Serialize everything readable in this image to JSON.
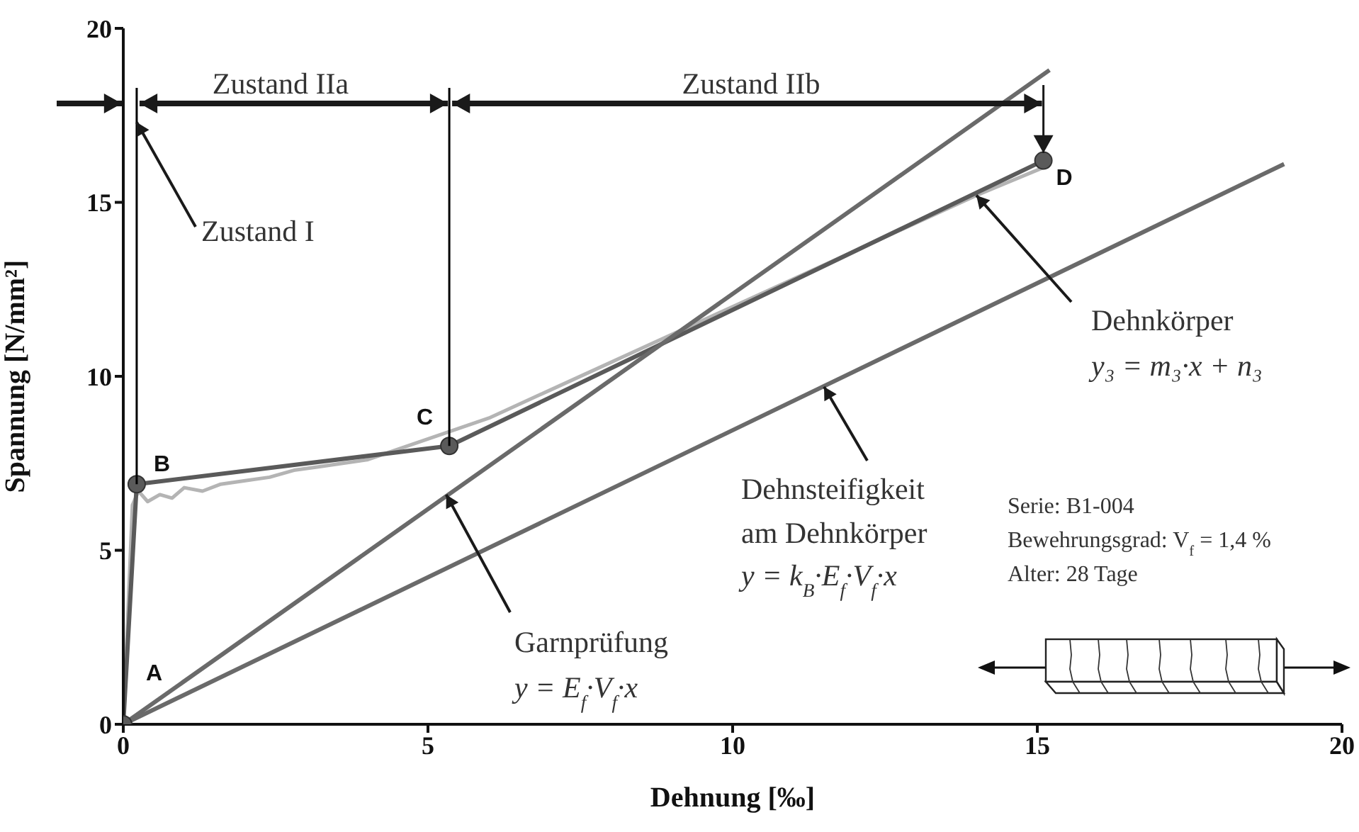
{
  "chart_data": {
    "type": "line",
    "xlabel": "Dehnung [‰]",
    "ylabel": "Spannung [N/mm²]",
    "xlim": [
      0,
      20
    ],
    "ylim": [
      0,
      20
    ],
    "xticks": [
      0,
      5,
      10,
      15,
      20
    ],
    "yticks": [
      0,
      5,
      10,
      15,
      20
    ],
    "grid": false,
    "line_style": "solid",
    "series": [
      {
        "color": "#b4b4b4",
        "marker": "none",
        "x": [
          0,
          0.15,
          0.25,
          0.4,
          0.6,
          0.8,
          1,
          1.3,
          1.6,
          2,
          2.4,
          2.8,
          3.2,
          3.6,
          4,
          4.5,
          5,
          5.5,
          6,
          7,
          8,
          9,
          10,
          11,
          12,
          13,
          14,
          15.1
        ],
        "values": [
          0,
          6.3,
          6.7,
          6.4,
          6.6,
          6.5,
          6.8,
          6.7,
          6.9,
          7.0,
          7.1,
          7.3,
          7.4,
          7.5,
          7.6,
          7.9,
          8.2,
          8.5,
          8.8,
          9.6,
          10.4,
          11.2,
          12.0,
          12.8,
          13.6,
          14.4,
          15.2,
          16.0
        ]
      },
      {
        "color": "#5a5a5a",
        "marker": "circle",
        "x": [
          0,
          0.22,
          5.35,
          15.1
        ],
        "values": [
          0,
          6.9,
          8.0,
          16.2
        ]
      },
      {
        "color": "#6a6a6a",
        "marker": "none",
        "x": [
          0,
          15.2
        ],
        "values": [
          0,
          18.8
        ]
      },
      {
        "color": "#6a6a6a",
        "marker": "none",
        "x": [
          0,
          19.05
        ],
        "values": [
          0,
          16.1
        ]
      }
    ],
    "ref_lines": [
      {
        "axis": "x",
        "value": 0.22,
        "color": "#000000"
      },
      {
        "axis": "x",
        "value": 5.35,
        "color": "#000000"
      }
    ],
    "annotations": [
      "Zustand IIa",
      "Zustand IIb",
      {
        "text": "Zustand I",
        "x": 0.22,
        "y": 17.3
      },
      {
        "text": "A",
        "x": 0,
        "y": 0
      },
      {
        "text": "B",
        "x": 0.22,
        "y": 6.9
      },
      {
        "text": "C",
        "x": 5.35,
        "y": 8.0
      },
      {
        "text": "D",
        "x": 15.1,
        "y": 16.2
      },
      {
        "text": "Dehnkörper",
        "x": 14,
        "y": 15.2
      },
      "y₃ = m₃·x + n₃",
      {
        "text": "Dehnsteifigkeit",
        "x": 11.5,
        "y": 9.7
      },
      "am Dehnkörper",
      "y = k$_{B}$·E$_{f}$·V$_{f}$·x",
      {
        "text": "Garnprüfung",
        "x": 5.3,
        "y": 6.6
      },
      "y = E$_{f}$·V$_{f}$·x",
      "Serie: B1-004",
      "Bewehrungsgrad: V$_{f}$ = 1,4 %",
      "Alter: 28 Tage"
    ]
  }
}
